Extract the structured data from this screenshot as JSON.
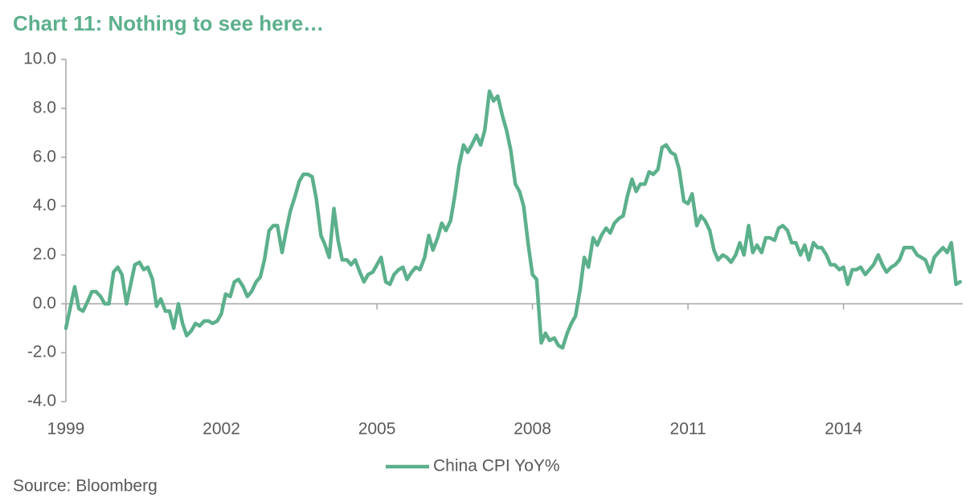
{
  "chart_data": {
    "type": "line",
    "title": "Chart 11: Nothing to see here…",
    "source": "Source: Bloomberg",
    "x": [
      1999,
      1999.08,
      1999.17,
      1999.25,
      1999.33,
      1999.42,
      1999.5,
      1999.58,
      1999.67,
      1999.75,
      1999.83,
      1999.92,
      2000,
      2000.08,
      2000.17,
      2000.25,
      2000.33,
      2000.42,
      2000.5,
      2000.58,
      2000.67,
      2000.75,
      2000.83,
      2000.92,
      2001,
      2001.08,
      2001.17,
      2001.25,
      2001.33,
      2001.42,
      2001.5,
      2001.58,
      2001.67,
      2001.75,
      2001.83,
      2001.92,
      2002,
      2002.08,
      2002.17,
      2002.25,
      2002.33,
      2002.42,
      2002.5,
      2002.58,
      2002.67,
      2002.75,
      2002.83,
      2002.92,
      2003,
      2003.08,
      2003.17,
      2003.25,
      2003.33,
      2003.42,
      2003.5,
      2003.58,
      2003.67,
      2003.75,
      2003.83,
      2003.92,
      2004,
      2004.08,
      2004.17,
      2004.25,
      2004.33,
      2004.42,
      2004.5,
      2004.58,
      2004.67,
      2004.75,
      2004.83,
      2004.92,
      2005,
      2005.08,
      2005.17,
      2005.25,
      2005.33,
      2005.42,
      2005.5,
      2005.58,
      2005.67,
      2005.75,
      2005.83,
      2005.92,
      2006,
      2006.08,
      2006.17,
      2006.25,
      2006.33,
      2006.42,
      2006.5,
      2006.58,
      2006.67,
      2006.75,
      2006.83,
      2006.92,
      2007,
      2007.08,
      2007.17,
      2007.25,
      2007.33,
      2007.42,
      2007.5,
      2007.58,
      2007.67,
      2007.75,
      2007.83,
      2007.92,
      2008,
      2008.08,
      2008.17,
      2008.25,
      2008.33,
      2008.42,
      2008.5,
      2008.58,
      2008.67,
      2008.75,
      2008.83,
      2008.92,
      2009,
      2009.08,
      2009.17,
      2009.25,
      2009.33,
      2009.42,
      2009.5,
      2009.58,
      2009.67,
      2009.75,
      2009.83,
      2009.92,
      2010,
      2010.08,
      2010.17,
      2010.25,
      2010.33,
      2010.42,
      2010.5,
      2010.58,
      2010.67,
      2010.75,
      2010.83,
      2010.92,
      2011,
      2011.08,
      2011.17,
      2011.25,
      2011.33,
      2011.42,
      2011.5,
      2011.58,
      2011.67,
      2011.75,
      2011.83,
      2011.92,
      2012,
      2012.08,
      2012.17,
      2012.25,
      2012.33,
      2012.42,
      2012.5,
      2012.58,
      2012.67,
      2012.75,
      2012.83,
      2012.92,
      2013,
      2013.08,
      2013.17,
      2013.25,
      2013.33,
      2013.42,
      2013.5,
      2013.58,
      2013.67,
      2013.75,
      2013.83,
      2013.92,
      2014,
      2014.08,
      2014.17,
      2014.25,
      2014.33,
      2014.42,
      2014.5,
      2014.58,
      2014.67,
      2014.75,
      2014.83,
      2014.92,
      2015,
      2015.08,
      2015.17,
      2015.25,
      2015.33,
      2015.42,
      2015.5,
      2015.58,
      2015.67,
      2015.75,
      2015.83,
      2015.92,
      2016,
      2016.08,
      2016.17,
      2016.25
    ],
    "series": [
      {
        "name": "China CPI YoY%",
        "color": "#5cb08c",
        "values": [
          -1.0,
          -0.2,
          0.7,
          -0.2,
          -0.3,
          0.1,
          0.5,
          0.5,
          0.3,
          0.0,
          0.0,
          1.3,
          1.5,
          1.2,
          0.0,
          0.8,
          1.6,
          1.7,
          1.4,
          1.5,
          1.0,
          -0.1,
          0.2,
          -0.3,
          -0.3,
          -1.0,
          0.0,
          -0.8,
          -1.3,
          -1.1,
          -0.8,
          -0.9,
          -0.7,
          -0.7,
          -0.8,
          -0.7,
          -0.4,
          0.4,
          0.3,
          0.9,
          1.0,
          0.7,
          0.3,
          0.5,
          0.9,
          1.1,
          1.8,
          3.0,
          3.2,
          3.2,
          2.1,
          3.0,
          3.8,
          4.4,
          5.0,
          5.3,
          5.3,
          5.2,
          4.3,
          2.8,
          2.4,
          1.9,
          3.9,
          2.6,
          1.8,
          1.8,
          1.6,
          1.8,
          1.3,
          0.9,
          1.2,
          1.3,
          1.6,
          1.9,
          0.9,
          0.8,
          1.2,
          1.4,
          1.5,
          1.0,
          1.3,
          1.5,
          1.4,
          1.9,
          2.8,
          2.2,
          2.7,
          3.3,
          3.0,
          3.4,
          4.4,
          5.6,
          6.5,
          6.2,
          6.5,
          6.9,
          6.5,
          7.1,
          8.7,
          8.3,
          8.5,
          7.7,
          7.1,
          6.3,
          4.9,
          4.6,
          4.0,
          2.4,
          1.2,
          1.0,
          -1.6,
          -1.2,
          -1.5,
          -1.4,
          -1.7,
          -1.8,
          -1.2,
          -0.8,
          -0.5,
          0.6,
          1.9,
          1.5,
          2.7,
          2.4,
          2.8,
          3.1,
          2.9,
          3.3,
          3.5,
          3.6,
          4.4,
          5.1,
          4.6,
          4.9,
          4.9,
          5.4,
          5.3,
          5.5,
          6.4,
          6.5,
          6.2,
          6.1,
          5.5,
          4.2,
          4.1,
          4.5,
          3.2,
          3.6,
          3.4,
          3.0,
          2.2,
          1.8,
          2.0,
          1.9,
          1.7,
          2.0,
          2.5,
          2.0,
          3.2,
          2.1,
          2.4,
          2.1,
          2.7,
          2.7,
          2.6,
          3.1,
          3.2,
          3.0,
          2.5,
          2.5,
          2.0,
          2.4,
          1.8,
          2.5,
          2.3,
          2.3,
          2.0,
          1.6,
          1.6,
          1.4,
          1.5,
          0.8,
          1.4,
          1.4,
          1.5,
          1.2,
          1.4,
          1.6,
          2.0,
          1.6,
          1.3,
          1.5,
          1.6,
          1.8,
          2.3,
          2.3,
          2.3,
          2.0,
          1.9,
          1.8,
          1.3,
          1.9,
          2.1,
          2.3,
          2.1,
          2.5,
          0.8,
          0.9
        ]
      }
    ],
    "xlim": [
      1999,
      2016.3
    ],
    "xticks": [
      1999,
      2002,
      2005,
      2008,
      2011,
      2014
    ],
    "ylim": [
      -4,
      10
    ],
    "yticks": [
      {
        "value": -4,
        "label": "-4.0"
      },
      {
        "value": -2,
        "label": "-2.0"
      },
      {
        "value": 0,
        "label": "0.0"
      },
      {
        "value": 2,
        "label": "2.0"
      },
      {
        "value": 4,
        "label": "4.0"
      },
      {
        "value": 6,
        "label": "6.0"
      },
      {
        "value": 8,
        "label": "8.0"
      },
      {
        "value": 10,
        "label": "10.0"
      }
    ],
    "grid": false,
    "legend": "bottom"
  }
}
